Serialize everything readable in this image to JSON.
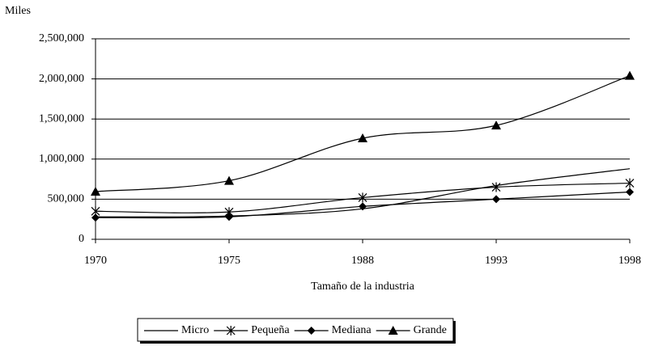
{
  "chart_data": {
    "type": "line",
    "y_label": "Miles",
    "x_label": "Tamaño de la industria",
    "categories": [
      "1970",
      "1975",
      "1988",
      "1993",
      "1998"
    ],
    "series": [
      {
        "name": "Micro",
        "color": "#000000",
        "marker": "none",
        "values": [
          280000,
          290000,
          380000,
          670000,
          880000
        ]
      },
      {
        "name": "Pequeña",
        "color": "#000000",
        "marker": "asterisk",
        "values": [
          350000,
          340000,
          520000,
          650000,
          700000
        ]
      },
      {
        "name": "Mediana",
        "color": "#000000",
        "marker": "diamond",
        "values": [
          270000,
          280000,
          410000,
          500000,
          590000
        ]
      },
      {
        "name": "Grande",
        "color": "#000000",
        "marker": "triangle",
        "values": [
          595000,
          730000,
          1260000,
          1420000,
          2040000
        ]
      }
    ],
    "ylim": [
      0,
      2500000
    ],
    "yticks": [
      0,
      {
        "value": 500000,
        "label": "500,000"
      },
      {
        "value": 1000000,
        "label": "1,000,000"
      },
      {
        "value": 1500000,
        "label": "1,500,000"
      },
      {
        "value": 2000000,
        "label": "2,000,000"
      },
      {
        "value": 2500000,
        "label": "2,500,000"
      }
    ],
    "grid": true,
    "legend": "bottom"
  }
}
